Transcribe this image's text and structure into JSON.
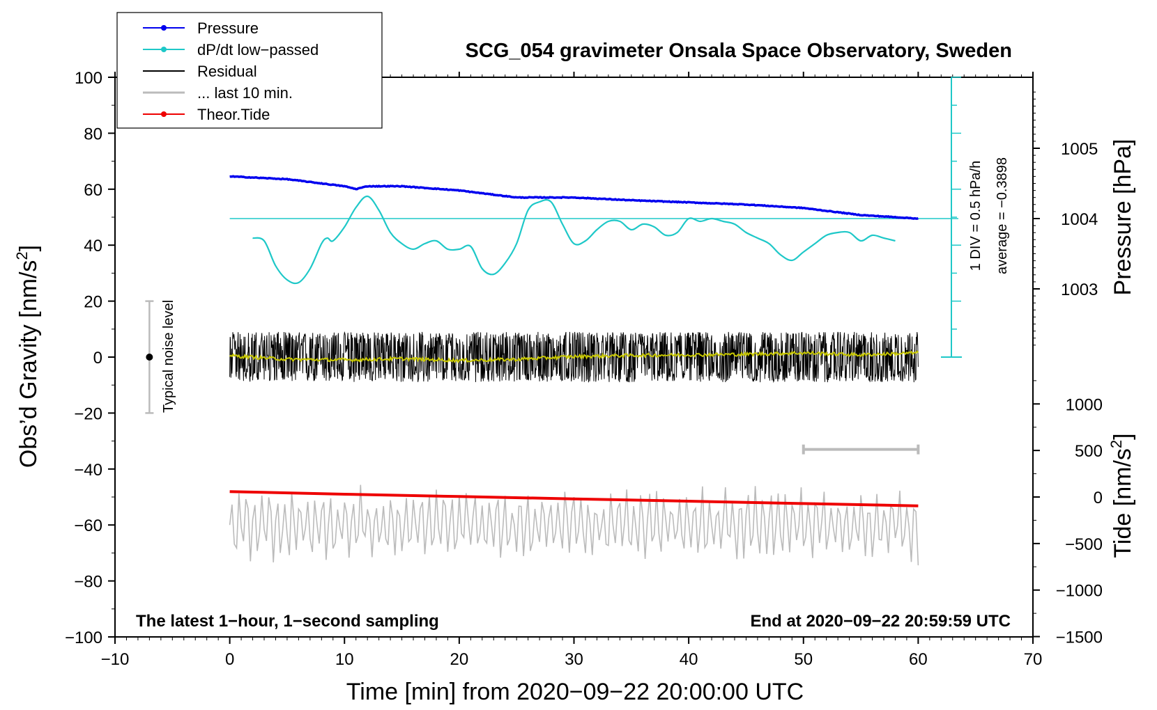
{
  "chart_data": {
    "type": "line",
    "title": "SCG_054 gravimeter Onsala Space Observatory, Sweden",
    "xlabel": "Time [min] from 2020−09−22 20:00:00 UTC",
    "ylabel_left": "Obs’d Gravity [nm/s",
    "ylabel_left_sup": "2",
    "ylabel_left_end": "]",
    "ylabel_right_pressure": "Pressure [hPa]",
    "ylabel_right_tide": "Tide [nm/s",
    "ylabel_right_tide_sup": "2",
    "ylabel_right_tide_end": "]",
    "xlim": [
      -10,
      70
    ],
    "ylim": [
      -100,
      100
    ],
    "x_ticks": [
      -10,
      0,
      10,
      20,
      30,
      40,
      50,
      60,
      70
    ],
    "x_tick_labels": [
      "−10",
      "0",
      "10",
      "20",
      "30",
      "40",
      "50",
      "60",
      "70"
    ],
    "y_ticks": [
      -100,
      -80,
      -60,
      -40,
      -20,
      0,
      20,
      40,
      60,
      80,
      100
    ],
    "y_tick_labels": [
      "−100",
      "−80",
      "−60",
      "−40",
      "−20",
      "0",
      "20",
      "40",
      "60",
      "80",
      "100"
    ],
    "pressure_ticks": [
      1003,
      1004,
      1005
    ],
    "pressure_tick_labels": [
      "1003",
      "1004",
      "1005"
    ],
    "tide_ticks": [
      1000,
      500,
      0,
      -500,
      -1000,
      -1500
    ],
    "tide_tick_labels": [
      "1000",
      "500",
      "0",
      "−500",
      "−1000",
      "−1500"
    ],
    "legend": [
      {
        "label": "Pressure",
        "color": "#0000ee",
        "marker": true
      },
      {
        "label": "dP/dt low−passed",
        "color": "#1ec8c8",
        "marker": true
      },
      {
        "label": "Residual",
        "color": "#000000",
        "marker": false
      },
      {
        "label": "... last 10 min.",
        "color": "#bbbbbb",
        "marker": false
      },
      {
        "label": "Theor.Tide",
        "color": "#ee0000",
        "marker": true
      }
    ],
    "series": [
      {
        "name": "Pressure",
        "color": "#0000ee",
        "axis": "pressure_hpa",
        "x": [
          0,
          5,
          8,
          10,
          11,
          12,
          15,
          20,
          25,
          28,
          30,
          35,
          40,
          45,
          50,
          55,
          60
        ],
        "values": [
          1004.6,
          1004.56,
          1004.5,
          1004.46,
          1004.42,
          1004.46,
          1004.46,
          1004.4,
          1004.3,
          1004.3,
          1004.3,
          1004.26,
          1004.23,
          1004.2,
          1004.15,
          1004.05,
          1004.0
        ]
      },
      {
        "name": "dP/dt low−passed",
        "color": "#1ec8c8",
        "axis": "dpdt_div",
        "x": [
          2,
          3,
          4,
          5,
          6,
          7,
          8,
          8.5,
          9,
          10,
          11,
          12,
          13,
          14,
          15,
          16,
          17,
          18,
          19,
          20,
          21,
          22,
          23,
          24,
          25,
          26,
          27,
          28,
          29,
          30,
          31,
          32,
          33,
          34,
          35,
          36,
          37,
          38,
          39,
          40,
          41,
          42,
          43,
          44,
          45,
          46,
          47,
          48,
          49,
          50,
          51,
          52,
          53,
          54,
          55,
          56,
          57,
          58
        ],
        "values": [
          -0.7,
          -0.8,
          -1.7,
          -2.2,
          -2.3,
          -1.8,
          -0.9,
          -0.7,
          -0.8,
          -0.3,
          0.4,
          0.8,
          0.3,
          -0.5,
          -0.9,
          -1.1,
          -0.9,
          -0.8,
          -1.1,
          -1.1,
          -1.0,
          -1.8,
          -2.0,
          -1.6,
          -0.9,
          0.3,
          0.6,
          0.6,
          -0.2,
          -0.9,
          -0.8,
          -0.4,
          -0.1,
          -0.1,
          -0.4,
          -0.2,
          -0.3,
          -0.6,
          -0.5,
          0.0,
          -0.1,
          0.0,
          -0.1,
          -0.2,
          -0.5,
          -0.7,
          -0.9,
          -1.3,
          -1.5,
          -1.2,
          -0.9,
          -0.6,
          -0.5,
          -0.5,
          -0.8,
          -0.6,
          -0.7,
          -0.8
        ]
      },
      {
        "name": "Residual",
        "color": "#000000",
        "axis": "gravity",
        "x": [
          0,
          60
        ],
        "range_min": [
          -20,
          -20
        ],
        "range_max": [
          16,
          16
        ],
        "mean": [
          0,
          0
        ]
      },
      {
        "name": "Residual smoothed",
        "color": "#c8c800",
        "axis": "gravity",
        "x": [
          0,
          5,
          10,
          15,
          20,
          25,
          30,
          35,
          40,
          45,
          50,
          55,
          60
        ],
        "values": [
          0.5,
          -0.8,
          -1.0,
          -0.6,
          -1.2,
          -0.8,
          0.2,
          0.6,
          0.8,
          1.0,
          1.5,
          0.8,
          1.5
        ]
      },
      {
        "name": "Theor.Tide",
        "color": "#ee0000",
        "axis": "tide",
        "x": [
          0,
          10,
          20,
          30,
          40,
          50,
          60
        ],
        "values": [
          58,
          30,
          5,
          -20,
          -45,
          -70,
          -95
        ]
      },
      {
        "name": "... last 10 min.",
        "color": "#bbbbbb",
        "axis": "gravity",
        "x": [
          0,
          60
        ],
        "values": [
          -60,
          -60
        ],
        "amplitude": 15
      }
    ],
    "pressure_scale": {
      "label": "1 DIV = 0.5 hPa/h",
      "average": "average = −0.3898"
    },
    "last10_bar": {
      "x_start": 50,
      "x_end": 60,
      "y": -33
    },
    "noise_bar": {
      "label": "Typical noise level",
      "x": -7,
      "y_min": -20,
      "y_max": 20,
      "y_center": 0
    },
    "annotations": {
      "left": "The latest 1−hour, 1−second sampling",
      "right": "End at 2020−09−22 20:59:59 UTC"
    }
  }
}
